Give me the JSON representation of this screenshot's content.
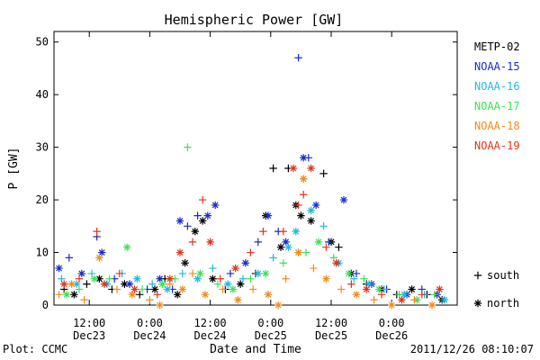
{
  "chart_data": {
    "type": "scatter",
    "title": "Hemispheric Power [GW]",
    "xlabel": "Date and Time",
    "ylabel": "P [GW]",
    "xlim": [
      "2011-12-23 05:00",
      "2011-12-26 13:00"
    ],
    "ylim": [
      0,
      52
    ],
    "y_ticks": [
      0,
      10,
      20,
      30,
      40,
      50
    ],
    "x_ticks": [
      {
        "at": "2011-12-23 12:00",
        "time": "12:00",
        "date": "Dec23"
      },
      {
        "at": "2011-12-24 00:00",
        "time": "0:00",
        "date": "Dec24"
      },
      {
        "at": "2011-12-24 12:00",
        "time": "12:00",
        "date": "Dec24"
      },
      {
        "at": "2011-12-25 00:00",
        "time": "0:00",
        "date": "Dec25"
      },
      {
        "at": "2011-12-25 12:00",
        "time": "12:00",
        "date": "Dec25"
      },
      {
        "at": "2011-12-26 00:00",
        "time": "0:00",
        "date": "Dec26"
      }
    ],
    "marker_legend": [
      {
        "symbol": "+",
        "label": "south"
      },
      {
        "symbol": "*",
        "label": "north"
      }
    ],
    "legend_position": "right",
    "grid": false,
    "series": [
      {
        "name": "METP-02",
        "color": "#000000",
        "points": [
          [
            "2011-12-23 07:00",
            3,
            "+"
          ],
          [
            "2011-12-23 09:00",
            2,
            "*"
          ],
          [
            "2011-12-23 11:30",
            4,
            "+"
          ],
          [
            "2011-12-23 14:00",
            5,
            "*"
          ],
          [
            "2011-12-23 16:30",
            3,
            "+"
          ],
          [
            "2011-12-23 19:00",
            4,
            "*"
          ],
          [
            "2011-12-23 22:00",
            2,
            "+"
          ],
          [
            "2011-12-24 01:00",
            3,
            "*"
          ],
          [
            "2011-12-24 03:00",
            5,
            "+"
          ],
          [
            "2011-12-24 05:30",
            2,
            "*"
          ],
          [
            "2011-12-24 07:00",
            8,
            "*"
          ],
          [
            "2011-12-24 09:00",
            14,
            "*"
          ],
          [
            "2011-12-24 10:30",
            16,
            "*"
          ],
          [
            "2011-12-24 12:30",
            5,
            "*"
          ],
          [
            "2011-12-24 15:00",
            3,
            "+"
          ],
          [
            "2011-12-24 18:00",
            4,
            "*"
          ],
          [
            "2011-12-24 21:00",
            6,
            "+"
          ],
          [
            "2011-12-24 23:00",
            17,
            "*"
          ],
          [
            "2011-12-25 00:30",
            26,
            "+"
          ],
          [
            "2011-12-25 02:00",
            11,
            "*"
          ],
          [
            "2011-12-25 03:30",
            26,
            "+"
          ],
          [
            "2011-12-25 05:00",
            19,
            "*"
          ],
          [
            "2011-12-25 06:00",
            17,
            "*"
          ],
          [
            "2011-12-25 08:00",
            16,
            "*"
          ],
          [
            "2011-12-25 10:30",
            25,
            "+"
          ],
          [
            "2011-12-25 12:00",
            12,
            "*"
          ],
          [
            "2011-12-25 13:30",
            11,
            "+"
          ],
          [
            "2011-12-25 16:00",
            6,
            "*"
          ],
          [
            "2011-12-25 19:00",
            4,
            "+"
          ],
          [
            "2011-12-25 22:00",
            3,
            "*"
          ],
          [
            "2011-12-26 01:00",
            2,
            "+"
          ],
          [
            "2011-12-26 04:00",
            3,
            "*"
          ],
          [
            "2011-12-26 07:00",
            2,
            "+"
          ],
          [
            "2011-12-26 10:00",
            1,
            "*"
          ]
        ]
      },
      {
        "name": "NOAA-15",
        "color": "#1a2cc8",
        "points": [
          [
            "2011-12-23 06:00",
            7,
            "*"
          ],
          [
            "2011-12-23 08:00",
            9,
            "+"
          ],
          [
            "2011-12-23 10:30",
            6,
            "*"
          ],
          [
            "2011-12-23 13:30",
            13,
            "+"
          ],
          [
            "2011-12-23 14:30",
            10,
            "*"
          ],
          [
            "2011-12-23 17:00",
            5,
            "+"
          ],
          [
            "2011-12-23 20:00",
            4,
            "*"
          ],
          [
            "2011-12-23 23:30",
            3,
            "+"
          ],
          [
            "2011-12-24 02:00",
            5,
            "*"
          ],
          [
            "2011-12-24 04:30",
            3,
            "+"
          ],
          [
            "2011-12-24 06:00",
            16,
            "*"
          ],
          [
            "2011-12-24 07:30",
            15,
            "+"
          ],
          [
            "2011-12-24 09:30",
            17,
            "+"
          ],
          [
            "2011-12-24 11:30",
            17,
            "*"
          ],
          [
            "2011-12-24 13:00",
            19,
            "*"
          ],
          [
            "2011-12-24 16:00",
            6,
            "+"
          ],
          [
            "2011-12-24 19:00",
            8,
            "*"
          ],
          [
            "2011-12-24 21:30",
            12,
            "+"
          ],
          [
            "2011-12-24 23:30",
            17,
            "*"
          ],
          [
            "2011-12-25 01:30",
            14,
            "+"
          ],
          [
            "2011-12-25 03:00",
            12,
            "*"
          ],
          [
            "2011-12-25 05:30",
            47,
            "+"
          ],
          [
            "2011-12-25 06:30",
            28,
            "*"
          ],
          [
            "2011-12-25 07:30",
            28,
            "+"
          ],
          [
            "2011-12-25 09:00",
            19,
            "*"
          ],
          [
            "2011-12-25 11:30",
            12,
            "+"
          ],
          [
            "2011-12-25 14:30",
            20,
            "*"
          ],
          [
            "2011-12-25 17:00",
            6,
            "+"
          ],
          [
            "2011-12-25 20:00",
            4,
            "*"
          ],
          [
            "2011-12-25 23:00",
            3,
            "+"
          ],
          [
            "2011-12-26 03:00",
            2,
            "*"
          ],
          [
            "2011-12-26 06:00",
            3,
            "+"
          ],
          [
            "2011-12-26 09:00",
            2,
            "*"
          ]
        ]
      },
      {
        "name": "NOAA-16",
        "color": "#22b8e0",
        "points": [
          [
            "2011-12-23 06:30",
            5,
            "+"
          ],
          [
            "2011-12-23 09:30",
            4,
            "*"
          ],
          [
            "2011-12-23 12:30",
            6,
            "+"
          ],
          [
            "2011-12-23 15:30",
            4,
            "*"
          ],
          [
            "2011-12-23 18:30",
            6,
            "+"
          ],
          [
            "2011-12-23 21:30",
            5,
            "*"
          ],
          [
            "2011-12-24 00:30",
            4,
            "+"
          ],
          [
            "2011-12-24 03:30",
            3,
            "*"
          ],
          [
            "2011-12-24 06:30",
            6,
            "+"
          ],
          [
            "2011-12-24 09:30",
            5,
            "*"
          ],
          [
            "2011-12-24 12:30",
            7,
            "+"
          ],
          [
            "2011-12-24 15:30",
            4,
            "*"
          ],
          [
            "2011-12-24 18:30",
            5,
            "+"
          ],
          [
            "2011-12-24 21:30",
            6,
            "*"
          ],
          [
            "2011-12-25 00:30",
            9,
            "+"
          ],
          [
            "2011-12-25 03:30",
            11,
            "*"
          ],
          [
            "2011-12-25 05:00",
            14,
            "*"
          ],
          [
            "2011-12-25 06:30",
            24,
            "+"
          ],
          [
            "2011-12-25 08:00",
            18,
            "*"
          ],
          [
            "2011-12-25 10:30",
            15,
            "+"
          ],
          [
            "2011-12-25 13:30",
            8,
            "*"
          ],
          [
            "2011-12-25 16:30",
            5,
            "+"
          ],
          [
            "2011-12-25 19:30",
            4,
            "*"
          ],
          [
            "2011-12-25 22:30",
            3,
            "+"
          ],
          [
            "2011-12-26 02:30",
            2,
            "*"
          ],
          [
            "2011-12-26 06:30",
            2,
            "+"
          ],
          [
            "2011-12-26 10:30",
            1,
            "*"
          ]
        ]
      },
      {
        "name": "NOAA-17",
        "color": "#3ee05a",
        "points": [
          [
            "2011-12-23 07:30",
            2,
            "*"
          ],
          [
            "2011-12-23 10:00",
            3,
            "+"
          ],
          [
            "2011-12-23 13:00",
            5,
            "*"
          ],
          [
            "2011-12-23 16:00",
            5,
            "+"
          ],
          [
            "2011-12-23 19:30",
            11,
            "*"
          ],
          [
            "2011-12-23 22:30",
            3,
            "+"
          ],
          [
            "2011-12-24 02:30",
            4,
            "*"
          ],
          [
            "2011-12-24 05:00",
            5,
            "+"
          ],
          [
            "2011-12-24 07:30",
            30,
            "+"
          ],
          [
            "2011-12-24 10:00",
            6,
            "*"
          ],
          [
            "2011-12-24 13:30",
            4,
            "+"
          ],
          [
            "2011-12-24 16:30",
            3,
            "*"
          ],
          [
            "2011-12-24 20:00",
            5,
            "+"
          ],
          [
            "2011-12-24 23:00",
            6,
            "*"
          ],
          [
            "2011-12-25 02:30",
            8,
            "+"
          ],
          [
            "2011-12-25 05:30",
            10,
            "*"
          ],
          [
            "2011-12-25 07:00",
            10,
            "+"
          ],
          [
            "2011-12-25 09:30",
            12,
            "*"
          ],
          [
            "2011-12-25 12:30",
            9,
            "+"
          ],
          [
            "2011-12-25 15:30",
            6,
            "*"
          ],
          [
            "2011-12-25 18:30",
            5,
            "+"
          ],
          [
            "2011-12-25 21:30",
            3,
            "*"
          ],
          [
            "2011-12-26 01:30",
            2,
            "+"
          ],
          [
            "2011-12-26 05:00",
            1,
            "*"
          ],
          [
            "2011-12-26 08:30",
            2,
            "+"
          ]
        ]
      },
      {
        "name": "NOAA-18",
        "color": "#f08c1c",
        "points": [
          [
            "2011-12-23 06:00",
            2,
            "+"
          ],
          [
            "2011-12-23 08:30",
            4,
            "*"
          ],
          [
            "2011-12-23 11:00",
            1,
            "+"
          ],
          [
            "2011-12-23 14:00",
            9,
            "*"
          ],
          [
            "2011-12-23 17:30",
            3,
            "+"
          ],
          [
            "2011-12-23 20:30",
            2,
            "*"
          ],
          [
            "2011-12-24 00:00",
            1,
            "+"
          ],
          [
            "2011-12-24 02:00",
            0,
            "*"
          ],
          [
            "2011-12-24 04:00",
            4,
            "+"
          ],
          [
            "2011-12-24 06:30",
            3,
            "*"
          ],
          [
            "2011-12-24 08:30",
            6,
            "+"
          ],
          [
            "2011-12-24 11:00",
            2,
            "*"
          ],
          [
            "2011-12-24 14:30",
            3,
            "+"
          ],
          [
            "2011-12-24 17:30",
            1,
            "*"
          ],
          [
            "2011-12-24 20:30",
            3,
            "+"
          ],
          [
            "2011-12-24 23:30",
            2,
            "*"
          ],
          [
            "2011-12-25 01:30",
            0,
            "*"
          ],
          [
            "2011-12-25 03:00",
            5,
            "+"
          ],
          [
            "2011-12-25 05:30",
            10,
            "*"
          ],
          [
            "2011-12-25 06:30",
            24,
            "*"
          ],
          [
            "2011-12-25 08:30",
            7,
            "+"
          ],
          [
            "2011-12-25 11:00",
            5,
            "*"
          ],
          [
            "2011-12-25 14:00",
            3,
            "+"
          ],
          [
            "2011-12-25 17:00",
            2,
            "*"
          ],
          [
            "2011-12-25 20:30",
            1,
            "+"
          ],
          [
            "2011-12-26 00:00",
            0,
            "*"
          ],
          [
            "2011-12-26 04:30",
            1,
            "+"
          ],
          [
            "2011-12-26 08:00",
            0,
            "*"
          ]
        ]
      },
      {
        "name": "NOAA-19",
        "color": "#e0351c",
        "points": [
          [
            "2011-12-23 07:00",
            4,
            "*"
          ],
          [
            "2011-12-23 10:00",
            5,
            "+"
          ],
          [
            "2011-12-23 13:30",
            14,
            "+"
          ],
          [
            "2011-12-23 15:00",
            4,
            "*"
          ],
          [
            "2011-12-23 18:00",
            6,
            "+"
          ],
          [
            "2011-12-23 21:00",
            3,
            "*"
          ],
          [
            "2011-12-24 01:30",
            2,
            "+"
          ],
          [
            "2011-12-24 04:00",
            5,
            "*"
          ],
          [
            "2011-12-24 06:00",
            10,
            "*"
          ],
          [
            "2011-12-24 08:30",
            12,
            "+"
          ],
          [
            "2011-12-24 10:30",
            20,
            "+"
          ],
          [
            "2011-12-24 12:00",
            12,
            "*"
          ],
          [
            "2011-12-24 14:00",
            5,
            "+"
          ],
          [
            "2011-12-24 17:00",
            7,
            "*"
          ],
          [
            "2011-12-24 20:00",
            10,
            "+"
          ],
          [
            "2011-12-24 22:30",
            14,
            "+"
          ],
          [
            "2011-12-25 02:30",
            14,
            "+"
          ],
          [
            "2011-12-25 04:30",
            26,
            "*"
          ],
          [
            "2011-12-25 05:30",
            19,
            "+"
          ],
          [
            "2011-12-25 06:30",
            21,
            "+"
          ],
          [
            "2011-12-25 08:00",
            26,
            "*"
          ],
          [
            "2011-12-25 11:00",
            11,
            "+"
          ],
          [
            "2011-12-25 13:00",
            8,
            "*"
          ],
          [
            "2011-12-25 16:00",
            4,
            "+"
          ],
          [
            "2011-12-25 19:00",
            3,
            "*"
          ],
          [
            "2011-12-25 22:00",
            2,
            "+"
          ],
          [
            "2011-12-26 02:00",
            1,
            "*"
          ],
          [
            "2011-12-26 06:00",
            2,
            "+"
          ],
          [
            "2011-12-26 09:30",
            3,
            "*"
          ]
        ]
      }
    ]
  },
  "footer": {
    "left": "Plot: CCMC",
    "right": "2011/12/26 08:10:07"
  }
}
